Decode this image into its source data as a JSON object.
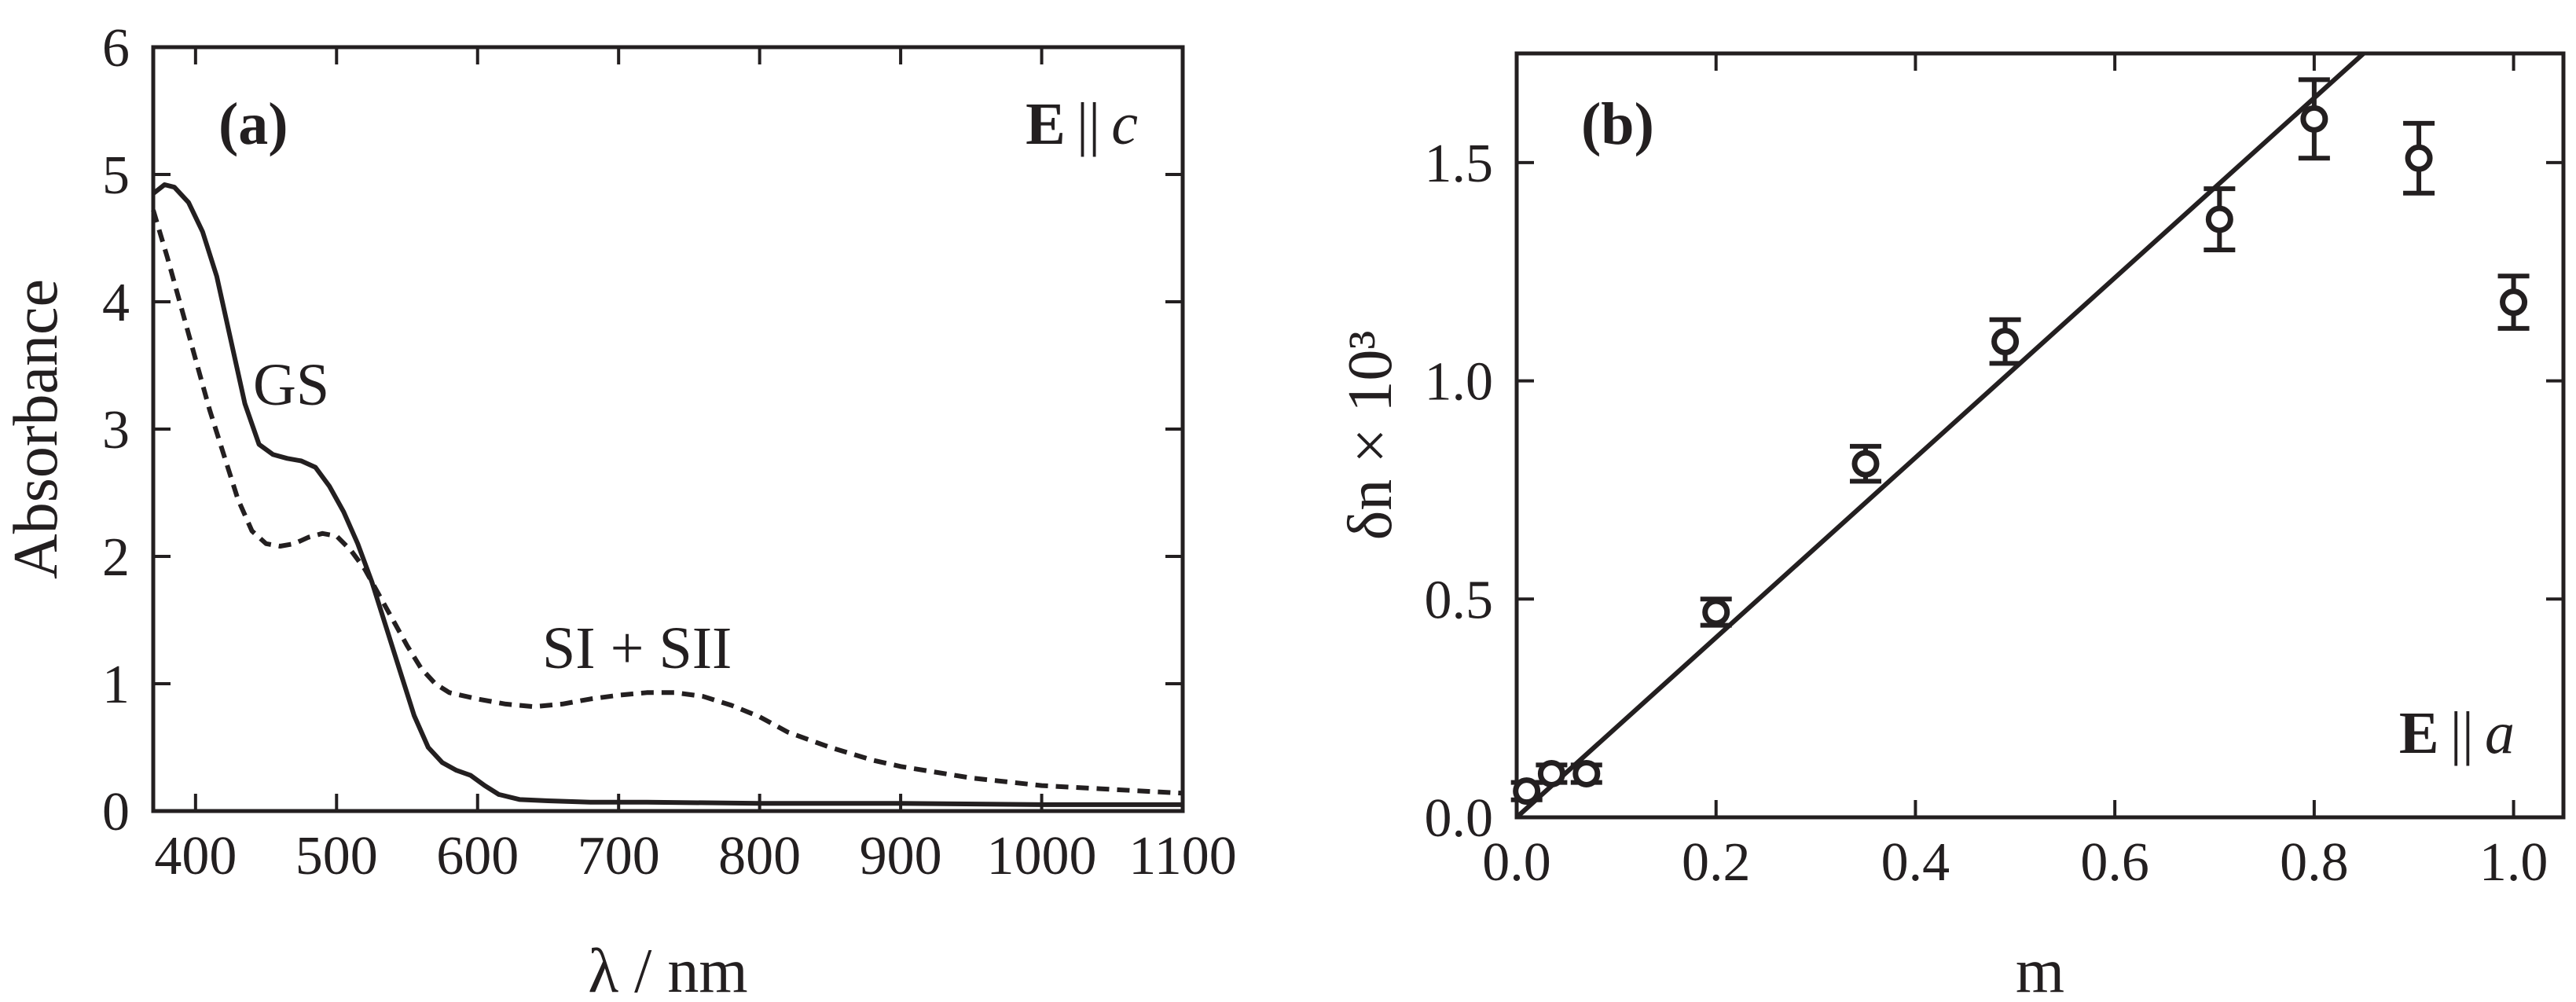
{
  "chart_data": [
    {
      "type": "line",
      "panel_label": "(a)",
      "annotation_field": "E",
      "annotation_parallel": "||",
      "annotation_axis": "c",
      "xlabel": "λ / nm",
      "ylabel": "Absorbance",
      "xlim": [
        370,
        1100
      ],
      "ylim": [
        0,
        6
      ],
      "xticks": [
        400,
        500,
        600,
        700,
        800,
        900,
        1000,
        1100
      ],
      "yticks": [
        0,
        1,
        2,
        3,
        4,
        5,
        6
      ],
      "series": [
        {
          "name": "GS",
          "style": "solid",
          "x": [
            370,
            378,
            385,
            395,
            405,
            415,
            425,
            435,
            445,
            455,
            465,
            475,
            485,
            495,
            505,
            515,
            525,
            535,
            545,
            555,
            565,
            575,
            585,
            595,
            605,
            615,
            630,
            650,
            680,
            720,
            800,
            900,
            1000,
            1100
          ],
          "y": [
            4.85,
            4.92,
            4.9,
            4.78,
            4.55,
            4.2,
            3.7,
            3.2,
            2.88,
            2.8,
            2.77,
            2.75,
            2.7,
            2.55,
            2.35,
            2.1,
            1.8,
            1.45,
            1.1,
            0.75,
            0.5,
            0.38,
            0.32,
            0.28,
            0.2,
            0.13,
            0.09,
            0.08,
            0.07,
            0.07,
            0.06,
            0.06,
            0.05,
            0.05
          ]
        },
        {
          "name": "SI + SII",
          "style": "dashed",
          "x": [
            370,
            380,
            390,
            400,
            410,
            420,
            430,
            440,
            450,
            460,
            470,
            480,
            490,
            500,
            510,
            520,
            530,
            540,
            550,
            560,
            570,
            580,
            600,
            620,
            640,
            660,
            680,
            700,
            720,
            740,
            760,
            780,
            800,
            820,
            850,
            880,
            900,
            950,
            1000,
            1050,
            1100
          ],
          "y": [
            4.72,
            4.35,
            3.95,
            3.55,
            3.15,
            2.8,
            2.45,
            2.2,
            2.1,
            2.08,
            2.1,
            2.15,
            2.18,
            2.16,
            2.05,
            1.9,
            1.7,
            1.5,
            1.3,
            1.12,
            1.0,
            0.93,
            0.88,
            0.84,
            0.82,
            0.84,
            0.88,
            0.91,
            0.93,
            0.93,
            0.9,
            0.83,
            0.74,
            0.62,
            0.5,
            0.4,
            0.35,
            0.26,
            0.2,
            0.17,
            0.14
          ]
        }
      ],
      "labels": {
        "gs": "GS",
        "si": "SI + SII"
      }
    },
    {
      "type": "scatter",
      "panel_label": "(b)",
      "annotation_field": "E",
      "annotation_parallel": "||",
      "annotation_axis": "a",
      "xlabel": "m",
      "ylabel": "δn × 10³",
      "xlim": [
        0,
        1.05
      ],
      "ylim": [
        0,
        1.75
      ],
      "xticks": [
        0.0,
        0.2,
        0.4,
        0.6,
        0.8,
        1.0
      ],
      "xticklabels": [
        "0.0",
        "0.2",
        "0.4",
        "0.6",
        "0.8",
        "1.0"
      ],
      "yticks": [
        0.0,
        0.5,
        1.0,
        1.5
      ],
      "yticklabels": [
        "0.0",
        "0.5",
        "1.0",
        "1.5"
      ],
      "points": [
        {
          "x": 0.01,
          "y": 0.06,
          "err": 0.02
        },
        {
          "x": 0.035,
          "y": 0.1,
          "err": 0.02
        },
        {
          "x": 0.07,
          "y": 0.1,
          "err": 0.02
        },
        {
          "x": 0.2,
          "y": 0.47,
          "err": 0.03
        },
        {
          "x": 0.35,
          "y": 0.81,
          "err": 0.04
        },
        {
          "x": 0.49,
          "y": 1.09,
          "err": 0.05
        },
        {
          "x": 0.705,
          "y": 1.37,
          "err": 0.07
        },
        {
          "x": 0.8,
          "y": 1.6,
          "err": 0.09
        },
        {
          "x": 0.905,
          "y": 1.51,
          "err": 0.08
        },
        {
          "x": 1.0,
          "y": 1.18,
          "err": 0.06
        }
      ],
      "fit": {
        "slope": 2.06,
        "intercept": 0.0,
        "x_start": 0.0,
        "x_end": 0.85
      }
    }
  ]
}
